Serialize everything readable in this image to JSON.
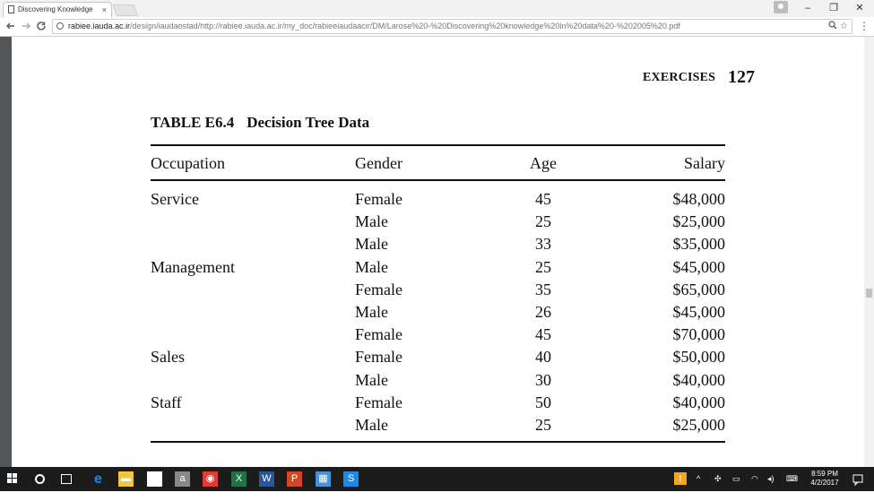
{
  "browser": {
    "tab_title": "Discovering Knowledge",
    "tab_close": "×",
    "address_host": "rabiee.iauda.ac.ir",
    "address_path": "/design/iaudaostad/http://rabiee.iauda.ac.ir/my_doc/rabieeiaudaacir/DM/Larose%20-%20Discovering%20knowledge%20in%20data%20-%202005%20.pdf",
    "icons": {
      "back": "arrow-left-icon",
      "forward": "arrow-right-icon",
      "reload": "reload-icon",
      "zoom": "zoom-icon",
      "star": "star-icon",
      "menu": "menu-dots-icon"
    },
    "window_controls": {
      "minimize": "–",
      "restore": "❐",
      "close": "✕"
    }
  },
  "document": {
    "running_head": "EXERCISES",
    "page_number": "127",
    "table_label": "TABLE E6.4",
    "table_title": "Decision Tree Data",
    "columns": [
      "Occupation",
      "Gender",
      "Age",
      "Salary"
    ],
    "rows": [
      {
        "occupation": "Service",
        "gender": "Female",
        "age": "45",
        "salary": "$48,000"
      },
      {
        "occupation": "",
        "gender": "Male",
        "age": "25",
        "salary": "$25,000"
      },
      {
        "occupation": "",
        "gender": "Male",
        "age": "33",
        "salary": "$35,000"
      },
      {
        "occupation": "Management",
        "gender": "Male",
        "age": "25",
        "salary": "$45,000"
      },
      {
        "occupation": "",
        "gender": "Female",
        "age": "35",
        "salary": "$65,000"
      },
      {
        "occupation": "",
        "gender": "Male",
        "age": "26",
        "salary": "$45,000"
      },
      {
        "occupation": "",
        "gender": "Female",
        "age": "45",
        "salary": "$70,000"
      },
      {
        "occupation": "Sales",
        "gender": "Female",
        "age": "40",
        "salary": "$50,000"
      },
      {
        "occupation": "",
        "gender": "Male",
        "age": "30",
        "salary": "$40,000"
      },
      {
        "occupation": "Staff",
        "gender": "Female",
        "age": "50",
        "salary": "$40,000"
      },
      {
        "occupation": "",
        "gender": "Male",
        "age": "25",
        "salary": "$25,000"
      }
    ]
  },
  "taskbar": {
    "clock_time": "8:59 PM",
    "clock_date": "4/2/2017",
    "apps": [
      {
        "name": "edge-icon",
        "glyph": "e",
        "color": "#1e88e5"
      },
      {
        "name": "file-explorer-icon",
        "glyph": "▬",
        "color": "#f4c542"
      },
      {
        "name": "store-icon",
        "glyph": "🛍",
        "color": "#ffffff"
      },
      {
        "name": "amazon-icon",
        "glyph": "a",
        "color": "#888888"
      },
      {
        "name": "chrome-icon",
        "glyph": "◉",
        "color": "#e53935"
      },
      {
        "name": "excel-icon",
        "glyph": "X",
        "color": "#217346"
      },
      {
        "name": "word-icon",
        "glyph": "W",
        "color": "#2b579a"
      },
      {
        "name": "powerpoint-icon",
        "glyph": "P",
        "color": "#d24726"
      },
      {
        "name": "app-icon",
        "glyph": "▦",
        "color": "#4a90d9"
      },
      {
        "name": "skype-icon",
        "glyph": "S",
        "color": "#1e88e5"
      }
    ],
    "tray_icons": [
      "^",
      "✣",
      "▭",
      "◠",
      "◂)",
      "⌨"
    ]
  }
}
